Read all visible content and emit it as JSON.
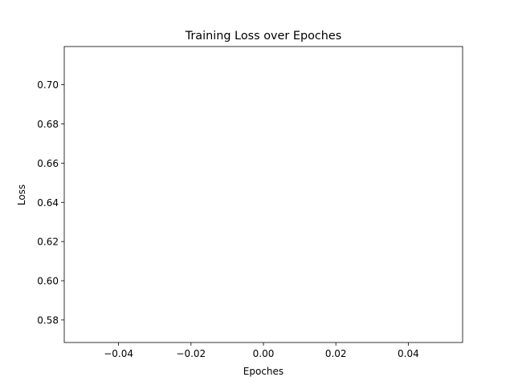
{
  "chart_data": {
    "type": "line",
    "title": "Training Loss over Epoches",
    "xlabel": "Epoches",
    "ylabel": "Loss",
    "xlim": [
      -0.055,
      0.055
    ],
    "ylim": [
      0.5685,
      0.7195
    ],
    "xticks": [
      -0.04,
      -0.02,
      0.0,
      0.02,
      0.04
    ],
    "xtick_labels": [
      "−0.04",
      "−0.02",
      "0.00",
      "0.02",
      "0.04"
    ],
    "yticks": [
      0.58,
      0.6,
      0.62,
      0.64,
      0.66,
      0.68,
      0.7
    ],
    "ytick_labels": [
      "0.58",
      "0.60",
      "0.62",
      "0.64",
      "0.66",
      "0.68",
      "0.70"
    ],
    "grid": false,
    "series": [
      {
        "x": [],
        "y": []
      }
    ]
  }
}
